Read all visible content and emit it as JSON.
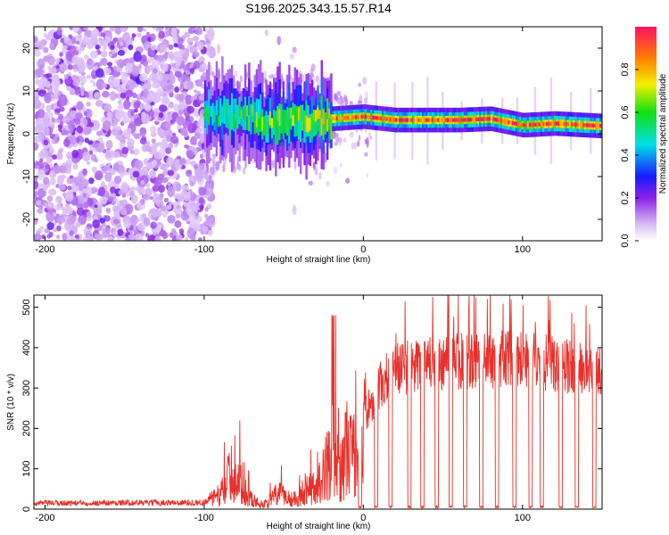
{
  "title": "S196.2025.343.15.57.R14",
  "colors": {
    "snr_line": "#e8302a",
    "axis": "#000000",
    "spec_low": "#9b1fe0",
    "spec_mid": "#00c8c8",
    "spec_high": "#ff2020"
  },
  "chart_data": [
    {
      "type": "heatmap",
      "name": "spectrogram",
      "xlabel": "Height of straight line (km)",
      "ylabel": "Frequency (Hz)",
      "xlim": [
        -207,
        150
      ],
      "ylim": [
        -25,
        25
      ],
      "xticks": [
        -200,
        -100,
        0,
        100
      ],
      "yticks": [
        -20,
        -10,
        0,
        10,
        20
      ],
      "colorbar": {
        "label": "Normalized spectral amplitude",
        "range": [
          0,
          1
        ],
        "ticks": [
          0.0,
          0.2,
          0.4,
          0.6,
          0.8
        ]
      },
      "ridge": {
        "description": "dominant frequency ridge",
        "x": [
          -100,
          -80,
          -60,
          -40,
          -20,
          0,
          20,
          40,
          60,
          80,
          100,
          120,
          150
        ],
        "frequency_hz": [
          5,
          4,
          3,
          3,
          3.5,
          4,
          3.2,
          3.2,
          3.2,
          3.5,
          2,
          2.4,
          1.8
        ]
      }
    },
    {
      "type": "line",
      "name": "snr",
      "xlabel": "Height of straight line (km)",
      "ylabel": "SNR (10 * v/v)",
      "xlim": [
        -207,
        150
      ],
      "ylim": [
        0,
        530
      ],
      "xticks": [
        -200,
        -100,
        0,
        100
      ],
      "yticks": [
        0,
        100,
        200,
        300,
        400,
        500
      ],
      "envelope": {
        "x": [
          -207,
          -100,
          -90,
          -85,
          -80,
          -75,
          -70,
          -65,
          -60,
          -55,
          -50,
          -45,
          -40,
          -35,
          -30,
          -25,
          -20,
          -15,
          -10,
          -5,
          0,
          10,
          20,
          40,
          60,
          80,
          100,
          120,
          150
        ],
        "y": [
          18,
          20,
          60,
          130,
          130,
          80,
          40,
          20,
          25,
          60,
          60,
          40,
          55,
          100,
          80,
          140,
          250,
          150,
          260,
          220,
          250,
          340,
          390,
          400,
          410,
          410,
          420,
          400,
          380
        ]
      },
      "dropout_centers": [
        -2,
        8,
        17,
        29,
        37,
        46,
        55,
        64,
        74,
        84,
        95,
        105,
        112,
        124,
        134,
        145
      ]
    }
  ]
}
